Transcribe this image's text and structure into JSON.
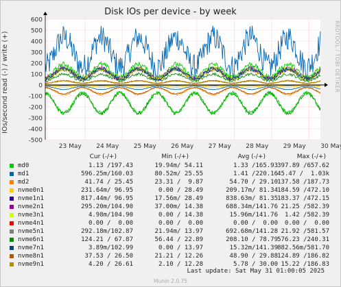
{
  "chart_data": {
    "type": "line",
    "title": "Disk IOs per device - by week",
    "ylabel": "IOs/second read (-) / write (+)",
    "ylim": [
      -500,
      600
    ],
    "yticks": [
      -500,
      -400,
      -300,
      -200,
      -100,
      0,
      100,
      200,
      300,
      400,
      500,
      600
    ],
    "xticks": [
      "23 May",
      "24 May",
      "25 May",
      "26 May",
      "27 May",
      "28 May",
      "29 May",
      "30 May"
    ],
    "grid": true,
    "series": [
      {
        "name": "md0",
        "color": "#00cc00",
        "write_typical": 130,
        "read_typical": -120
      },
      {
        "name": "md1",
        "color": "#0066b3",
        "write_typical": 300,
        "read_typical": -20
      },
      {
        "name": "md2",
        "color": "#ff8000",
        "write_typical": 25,
        "read_typical": -42
      },
      {
        "name": "nvme0n1",
        "color": "#ffcc00",
        "write_typical": 97,
        "read_typical": -10
      },
      {
        "name": "nvme1n1",
        "color": "#330099",
        "write_typical": 97,
        "read_typical": -2
      },
      {
        "name": "nvme2n1",
        "color": "#990099",
        "write_typical": 105,
        "read_typical": -1
      },
      {
        "name": "nvme3n1",
        "color": "#ccff00",
        "write_typical": 105,
        "read_typical": -1
      },
      {
        "name": "nvme4n1",
        "color": "#ff0000",
        "write_typical": 0,
        "read_typical": 0
      },
      {
        "name": "nvme5n1",
        "color": "#808080",
        "write_typical": 103,
        "read_typical": -1
      },
      {
        "name": "nvme6n1",
        "color": "#008f00",
        "write_typical": 68,
        "read_typical": -124
      },
      {
        "name": "nvme7n1",
        "color": "#00487d",
        "write_typical": 103,
        "read_typical": -1
      },
      {
        "name": "nvme8n1",
        "color": "#b35a00",
        "write_typical": 27,
        "read_typical": -38
      },
      {
        "name": "nvme9n1",
        "color": "#b38f00",
        "write_typical": 27,
        "read_typical": -4
      }
    ]
  },
  "source_label": "RRDTOOL / TOBI OETIKER",
  "legend": {
    "headers": {
      "cur": "Cur (-/+)",
      "min": "Min (-/+)",
      "avg": "Avg (-/+)",
      "max": "Max (-/+)"
    },
    "rows": [
      {
        "name": "md0",
        "cur": "1.13 /197.43",
        "min": "19.94m/ 54.11",
        "avg": "1.33 /165.93",
        "max": "397.89 /657.62"
      },
      {
        "name": "md1",
        "cur": "596.25m/160.03",
        "min": "80.52m/ 25.55",
        "avg": "1.41 /220.16",
        "max": "45.47 /  1.03k"
      },
      {
        "name": "md2",
        "cur": "41.74 / 25.45",
        "min": "23.31 /  9.87",
        "avg": "54.70 / 29.10",
        "max": "137.58 /187.73"
      },
      {
        "name": "nvme0n1",
        "cur": "231.64m/ 96.95",
        "min": "0.00 / 28.49",
        "avg": "209.17m/ 81.34",
        "max": "184.59 /472.10"
      },
      {
        "name": "nvme1n1",
        "cur": "817.44m/ 96.95",
        "min": "17.56m/ 28.49",
        "avg": "838.63m/ 81.35",
        "max": "183.37 /472.15"
      },
      {
        "name": "nvme2n1",
        "cur": "295.20m/104.90",
        "min": "37.00m/ 14.38",
        "avg": "688.34m/141.76",
        "max": "21.25 /582.39"
      },
      {
        "name": "nvme3n1",
        "cur": "4.98m/104.90",
        "min": "0.00 / 14.38",
        "avg": "15.96m/141.76",
        "max": "1.42 /582.39"
      },
      {
        "name": "nvme4n1",
        "cur": "0.00 /  0.00",
        "min": "0.00 /  0.00",
        "avg": "0.00 /  0.00",
        "max": "0.00 /  0.00"
      },
      {
        "name": "nvme5n1",
        "cur": "292.18m/102.87",
        "min": "21.94m/ 13.97",
        "avg": "692.68m/141.28",
        "max": "21.92 /581.57"
      },
      {
        "name": "nvme6n1",
        "cur": "124.21 / 67.87",
        "min": "56.44 / 22.89",
        "avg": "208.10 / 78.79",
        "max": "576.23 /240.31"
      },
      {
        "name": "nvme7n1",
        "cur": "3.89m/102.99",
        "min": "0.00 / 13.97",
        "avg": "15.32m/141.39",
        "max": "882.56m/581.70"
      },
      {
        "name": "nvme8n1",
        "cur": "37.53 / 26.50",
        "min": "21.21 / 12.26",
        "avg": "48.90 / 29.88",
        "max": "124.89 /186.82"
      },
      {
        "name": "nvme9n1",
        "cur": "4.20 / 26.61",
        "min": "2.10 / 12.28",
        "avg": "5.78 / 30.00",
        "max": "15.22 /186.83"
      }
    ]
  },
  "last_update": "Last update:  Sat May 31 01:00:05 2025",
  "footer": "Munin 2.0.75"
}
